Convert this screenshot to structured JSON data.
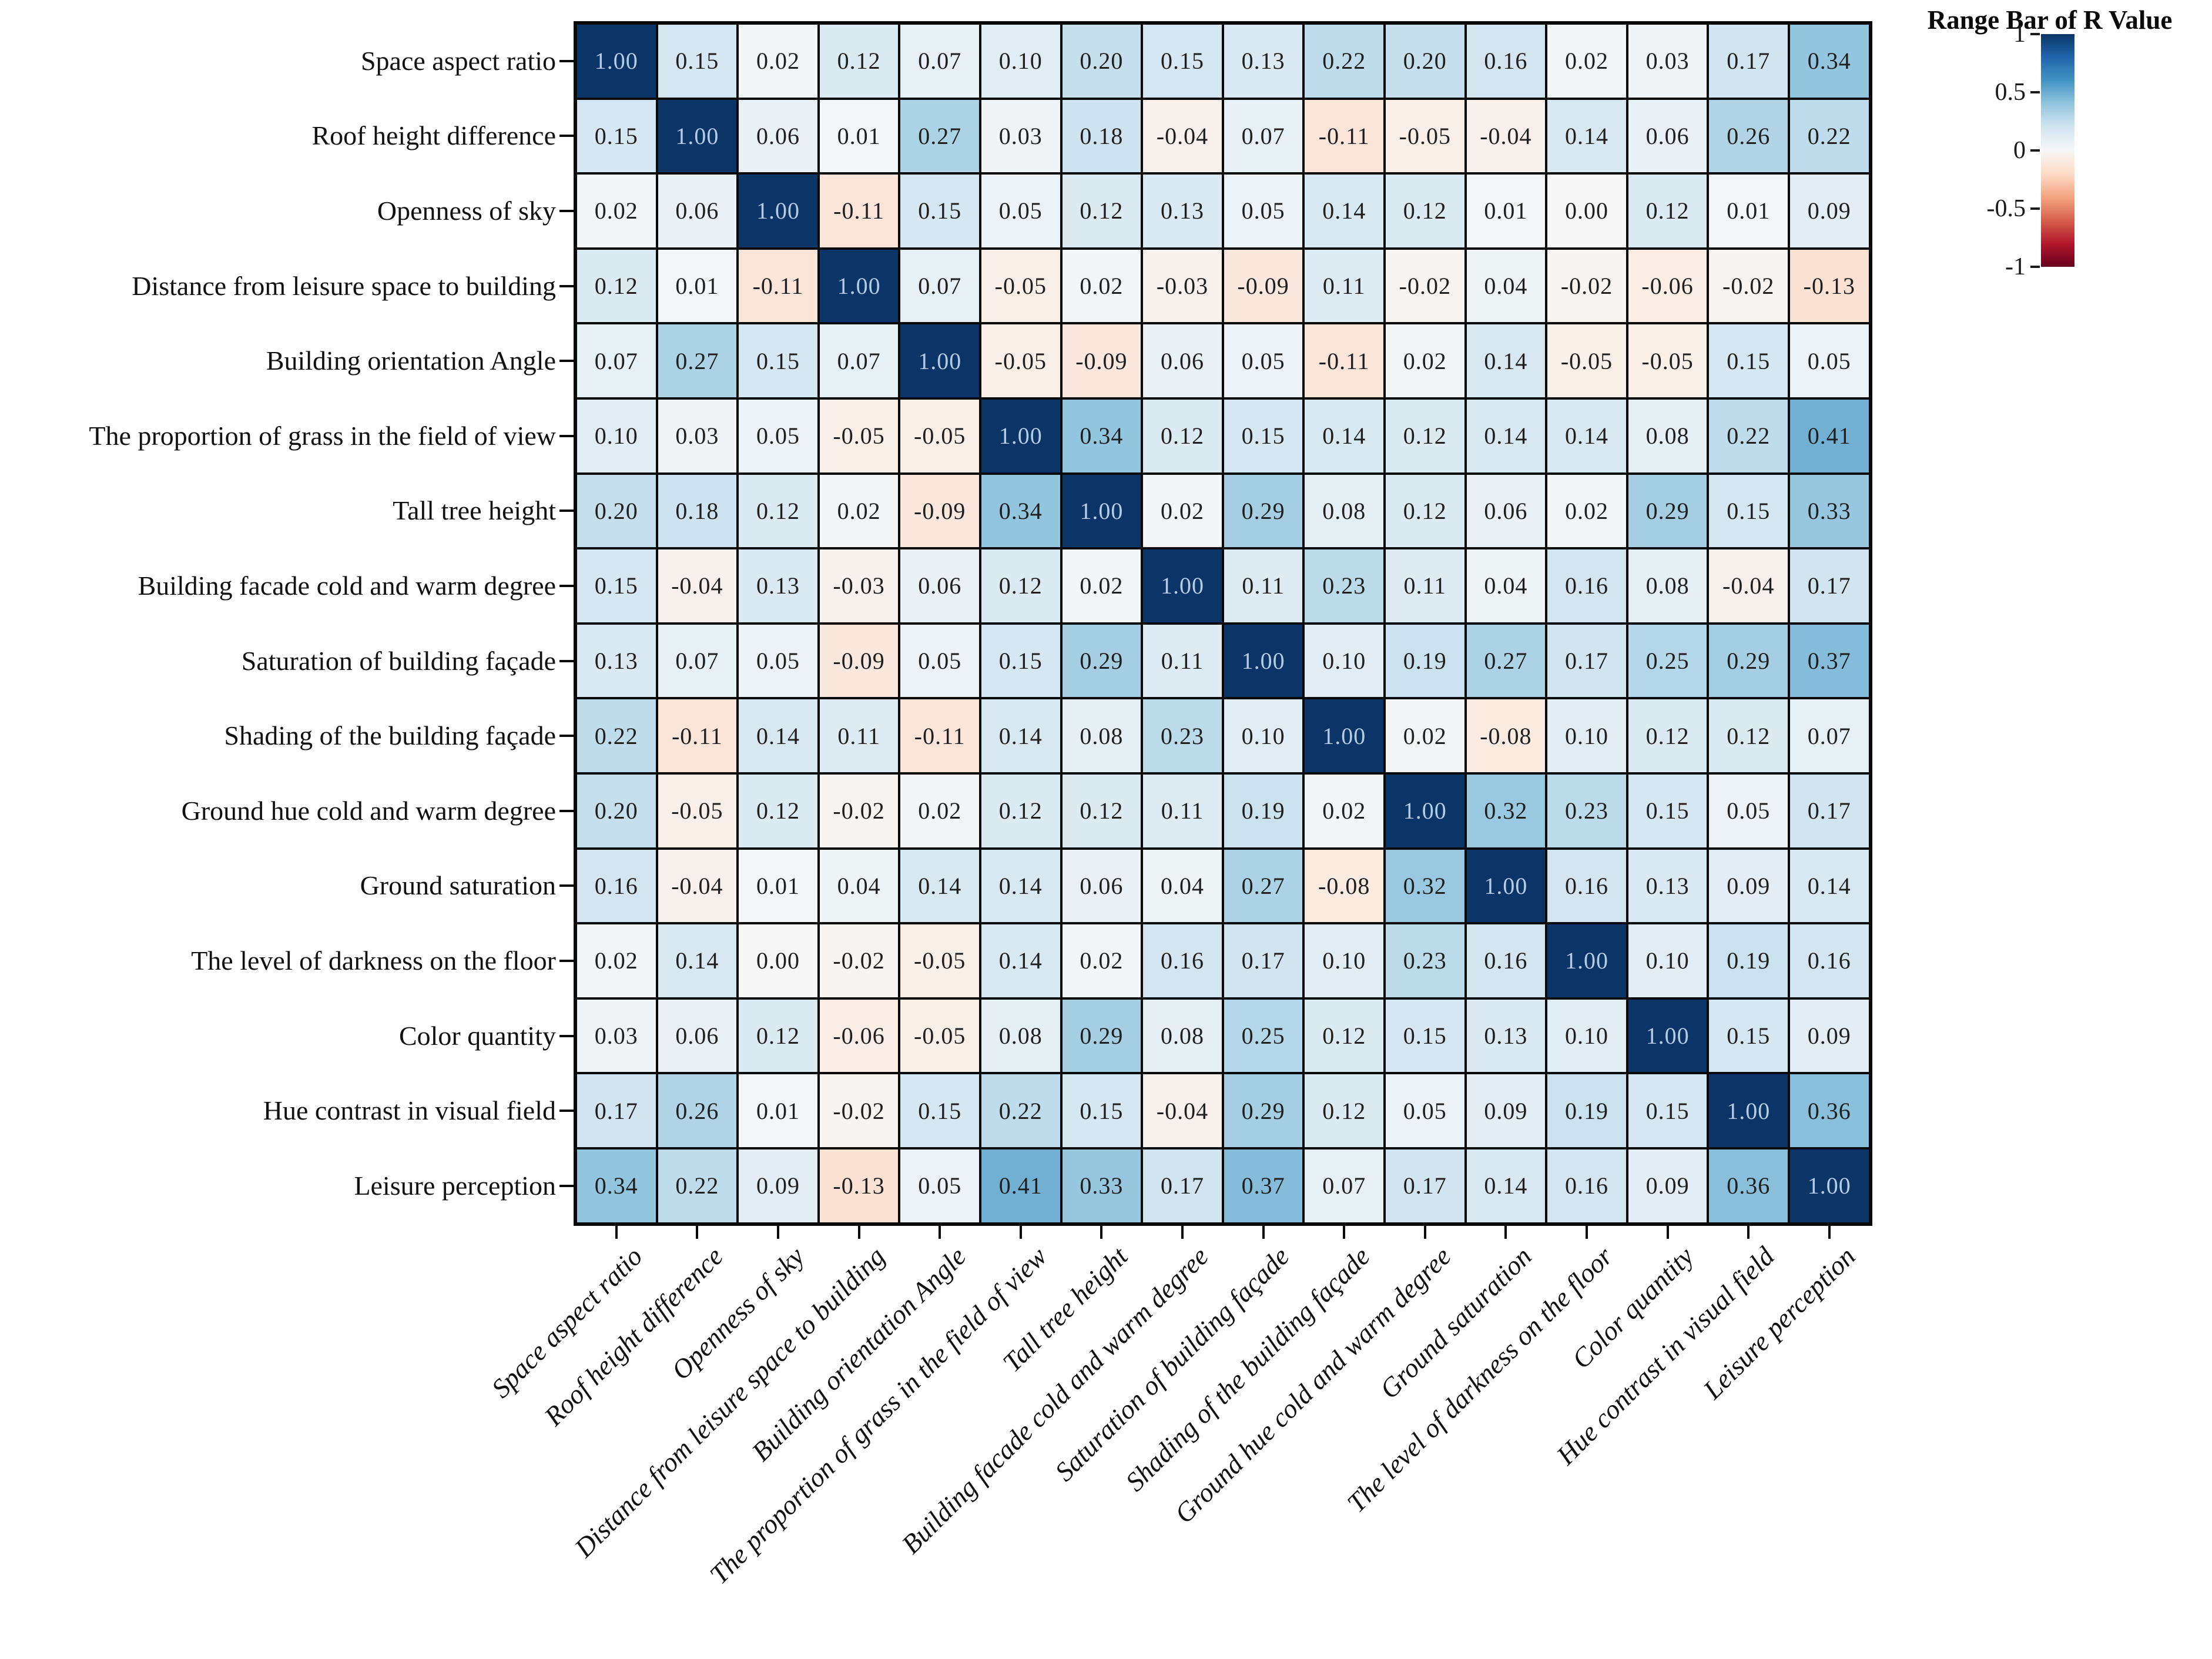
{
  "chart_data": {
    "type": "heatmap",
    "title": "",
    "variables": [
      "Space aspect ratio",
      "Roof height difference",
      "Openness of sky",
      "Distance from leisure space to building",
      "Building orientation Angle",
      "The proportion of grass in the field of view",
      "Tall tree height",
      "Building facade cold and warm degree",
      "Saturation of building façade",
      "Shading of the building façade",
      "Ground hue cold and warm degree",
      "Ground saturation",
      "The level of darkness on the floor",
      "Color quantity",
      "Hue contrast in visual field",
      "Leisure perception"
    ],
    "matrix": [
      [
        1.0,
        0.15,
        0.02,
        0.12,
        0.07,
        0.1,
        0.2,
        0.15,
        0.13,
        0.22,
        0.2,
        0.16,
        0.02,
        0.03,
        0.17,
        0.34
      ],
      [
        0.15,
        1.0,
        0.06,
        0.01,
        0.27,
        0.03,
        0.18,
        -0.04,
        0.07,
        -0.11,
        -0.05,
        -0.04,
        0.14,
        0.06,
        0.26,
        0.22
      ],
      [
        0.02,
        0.06,
        1.0,
        -0.11,
        0.15,
        0.05,
        0.12,
        0.13,
        0.05,
        0.14,
        0.12,
        0.01,
        0.0,
        0.12,
        0.01,
        0.09
      ],
      [
        0.12,
        0.01,
        -0.11,
        1.0,
        0.07,
        -0.05,
        0.02,
        -0.03,
        -0.09,
        0.11,
        -0.02,
        0.04,
        -0.02,
        -0.06,
        -0.02,
        -0.13
      ],
      [
        0.07,
        0.27,
        0.15,
        0.07,
        1.0,
        -0.05,
        -0.09,
        0.06,
        0.05,
        -0.11,
        0.02,
        0.14,
        -0.05,
        -0.05,
        0.15,
        0.05
      ],
      [
        0.1,
        0.03,
        0.05,
        -0.05,
        -0.05,
        1.0,
        0.34,
        0.12,
        0.15,
        0.14,
        0.12,
        0.14,
        0.14,
        0.08,
        0.22,
        0.41
      ],
      [
        0.2,
        0.18,
        0.12,
        0.02,
        -0.09,
        0.34,
        1.0,
        0.02,
        0.29,
        0.08,
        0.12,
        0.06,
        0.02,
        0.29,
        0.15,
        0.33
      ],
      [
        0.15,
        -0.04,
        0.13,
        -0.03,
        0.06,
        0.12,
        0.02,
        1.0,
        0.11,
        0.23,
        0.11,
        0.04,
        0.16,
        0.08,
        -0.04,
        0.17
      ],
      [
        0.13,
        0.07,
        0.05,
        -0.09,
        0.05,
        0.15,
        0.29,
        0.11,
        1.0,
        0.1,
        0.19,
        0.27,
        0.17,
        0.25,
        0.29,
        0.37
      ],
      [
        0.22,
        -0.11,
        0.14,
        0.11,
        -0.11,
        0.14,
        0.08,
        0.23,
        0.1,
        1.0,
        0.02,
        -0.08,
        0.1,
        0.12,
        0.12,
        0.07
      ],
      [
        0.2,
        -0.05,
        0.12,
        -0.02,
        0.02,
        0.12,
        0.12,
        0.11,
        0.19,
        0.02,
        1.0,
        0.32,
        0.23,
        0.15,
        0.05,
        0.17
      ],
      [
        0.16,
        -0.04,
        0.01,
        0.04,
        0.14,
        0.14,
        0.06,
        0.04,
        0.27,
        -0.08,
        0.32,
        1.0,
        0.16,
        0.13,
        0.09,
        0.14
      ],
      [
        0.02,
        0.14,
        0.0,
        -0.02,
        -0.05,
        0.14,
        0.02,
        0.16,
        0.17,
        0.1,
        0.23,
        0.16,
        1.0,
        0.1,
        0.19,
        0.16
      ],
      [
        0.03,
        0.06,
        0.12,
        -0.06,
        -0.05,
        0.08,
        0.29,
        0.08,
        0.25,
        0.12,
        0.15,
        0.13,
        0.1,
        1.0,
        0.15,
        0.09
      ],
      [
        0.17,
        0.26,
        0.01,
        -0.02,
        0.15,
        0.22,
        0.15,
        -0.04,
        0.29,
        0.12,
        0.05,
        0.09,
        0.19,
        0.15,
        1.0,
        0.36
      ],
      [
        0.34,
        0.22,
        0.09,
        -0.13,
        0.05,
        0.41,
        0.33,
        0.17,
        0.37,
        0.07,
        0.17,
        0.14,
        0.16,
        0.09,
        0.36,
        1.0
      ]
    ],
    "value_decimals": 2,
    "colorbar": {
      "title": "Range Bar of R Value",
      "tick_labels": [
        "1",
        "0.5",
        "0",
        "-0.5",
        "-1"
      ],
      "vmin": -1,
      "vmax": 1,
      "position": "top-right"
    },
    "colors": {
      "positive_max": "#0b3567",
      "positive_mid": "#4393c3",
      "zero": "#f7f7f7",
      "negative_mid": "#d6604d",
      "negative_max": "#67001f",
      "grid_line": "#0a0a0a",
      "cell_text": "#1f1f1f",
      "diagonal_text": "#b5cde4"
    },
    "layout": {
      "x_tick_rotation_deg": 45,
      "x_labels_style": "italic",
      "y_labels_side": "left",
      "grid": "on"
    }
  }
}
